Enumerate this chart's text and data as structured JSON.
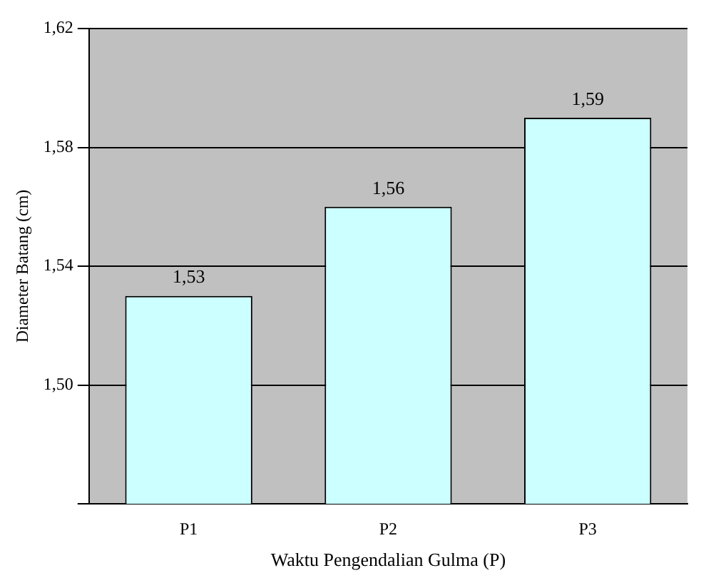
{
  "chart_data": {
    "type": "bar",
    "xlabel": "Waktu Pengendalian Gulma (P)",
    "ylabel": "Diameter Batang (cm)",
    "categories": [
      "P1",
      "P2",
      "P3"
    ],
    "values": [
      1.53,
      1.56,
      1.59
    ],
    "value_labels": [
      "1,53",
      "1,56",
      "1,59"
    ],
    "color": "#ccffff",
    "ylim": [
      1.46,
      1.62
    ],
    "yticks": [
      {
        "value": 1.46,
        "label": null
      },
      {
        "value": 1.5,
        "label": "1,50"
      },
      {
        "value": 1.54,
        "label": "1,54"
      },
      {
        "value": 1.58,
        "label": "1,58"
      },
      {
        "value": 1.62,
        "label": "1,62"
      }
    ],
    "grid": "y",
    "legend": false
  }
}
